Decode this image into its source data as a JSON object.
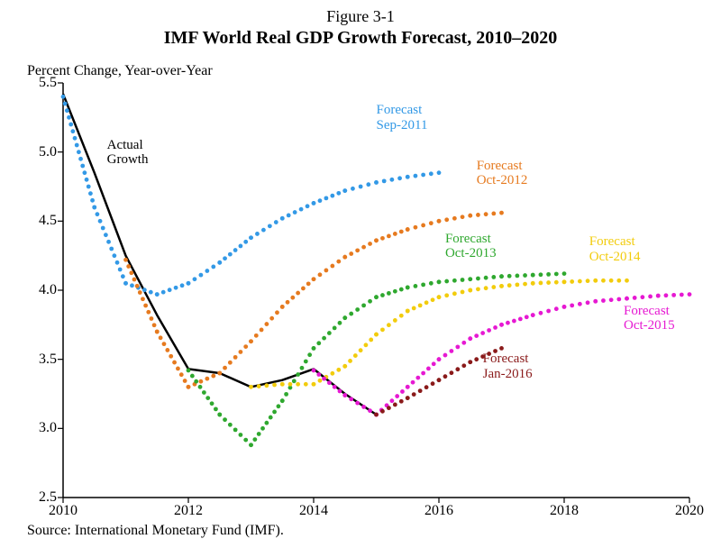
{
  "figure_label": "Figure 3-1",
  "title": "IMF World Real GDP Growth Forecast, 2010–2020",
  "y_axis_title": "Percent Change, Year-over-Year",
  "source": "Source: International Monetary Fund (IMF).",
  "chart": {
    "type": "line",
    "background_color": "#ffffff",
    "axis_color": "#000000",
    "xlim": [
      2010,
      2020
    ],
    "ylim": [
      2.5,
      5.5
    ],
    "xticks": [
      2010,
      2012,
      2014,
      2016,
      2018,
      2020
    ],
    "yticks": [
      2.5,
      3.0,
      3.5,
      4.0,
      4.5,
      5.0,
      5.5
    ],
    "tick_len": 6,
    "tick_fontsize": 16,
    "title_fontsize": 20,
    "dot_radius": 2.4,
    "line_width": 2,
    "series": [
      {
        "name": "Actual Growth",
        "label": "Actual\nGrowth",
        "label_pos": [
          2010.7,
          5.0
        ],
        "color": "#000000",
        "style": "solid",
        "data": [
          [
            2010,
            5.42
          ],
          [
            2010.5,
            4.85
          ],
          [
            2011,
            4.25
          ],
          [
            2011.5,
            3.82
          ],
          [
            2012,
            3.43
          ],
          [
            2012.5,
            3.4
          ],
          [
            2013,
            3.3
          ],
          [
            2013.5,
            3.35
          ],
          [
            2014,
            3.43
          ],
          [
            2014.5,
            3.25
          ],
          [
            2015,
            3.1
          ]
        ]
      },
      {
        "name": "Forecast Sep-2011",
        "label": "Forecast\nSep-2011",
        "label_pos": [
          2015.0,
          5.25
        ],
        "color": "#3399e6",
        "style": "dotted",
        "data": [
          [
            2010,
            5.4
          ],
          [
            2010.5,
            4.6
          ],
          [
            2011,
            4.05
          ],
          [
            2011.5,
            3.97
          ],
          [
            2012,
            4.05
          ],
          [
            2012.5,
            4.2
          ],
          [
            2013,
            4.38
          ],
          [
            2013.5,
            4.52
          ],
          [
            2014,
            4.63
          ],
          [
            2014.5,
            4.72
          ],
          [
            2015,
            4.78
          ],
          [
            2015.5,
            4.82
          ],
          [
            2016,
            4.85
          ]
        ]
      },
      {
        "name": "Forecast Oct-2012",
        "label": "Forecast\nOct-2012",
        "label_pos": [
          2016.6,
          4.85
        ],
        "color": "#e67a1f",
        "style": "dotted",
        "data": [
          [
            2011,
            4.22
          ],
          [
            2011.5,
            3.7
          ],
          [
            2012,
            3.3
          ],
          [
            2012.5,
            3.4
          ],
          [
            2013,
            3.63
          ],
          [
            2013.5,
            3.88
          ],
          [
            2014,
            4.08
          ],
          [
            2014.5,
            4.24
          ],
          [
            2015,
            4.36
          ],
          [
            2015.5,
            4.44
          ],
          [
            2016,
            4.5
          ],
          [
            2016.5,
            4.54
          ],
          [
            2017,
            4.56
          ]
        ]
      },
      {
        "name": "Forecast Oct-2013",
        "label": "Forecast\nOct-2013",
        "label_pos": [
          2016.1,
          4.32
        ],
        "color": "#2fa82f",
        "style": "dotted",
        "data": [
          [
            2012,
            3.42
          ],
          [
            2012.5,
            3.1
          ],
          [
            2013,
            2.88
          ],
          [
            2013.5,
            3.2
          ],
          [
            2014,
            3.58
          ],
          [
            2014.5,
            3.8
          ],
          [
            2015,
            3.95
          ],
          [
            2015.5,
            4.02
          ],
          [
            2016,
            4.06
          ],
          [
            2016.5,
            4.08
          ],
          [
            2017,
            4.1
          ],
          [
            2017.5,
            4.11
          ],
          [
            2018,
            4.12
          ]
        ]
      },
      {
        "name": "Forecast Oct-2014",
        "label": "Forecast\nOct-2014",
        "label_pos": [
          2018.4,
          4.3
        ],
        "color": "#f2cc0d",
        "style": "dotted",
        "data": [
          [
            2013,
            3.3
          ],
          [
            2013.5,
            3.32
          ],
          [
            2014,
            3.32
          ],
          [
            2014.5,
            3.45
          ],
          [
            2015,
            3.68
          ],
          [
            2015.5,
            3.85
          ],
          [
            2016,
            3.95
          ],
          [
            2016.5,
            4.0
          ],
          [
            2017,
            4.03
          ],
          [
            2017.5,
            4.05
          ],
          [
            2018,
            4.06
          ],
          [
            2018.5,
            4.07
          ],
          [
            2019,
            4.07
          ]
        ]
      },
      {
        "name": "Forecast Oct-2015",
        "label": "Forecast\nOct-2015",
        "label_pos": [
          2018.95,
          3.8
        ],
        "color": "#e619d2",
        "style": "dotted",
        "data": [
          [
            2014,
            3.42
          ],
          [
            2014.5,
            3.24
          ],
          [
            2015,
            3.1
          ],
          [
            2015.5,
            3.3
          ],
          [
            2016,
            3.5
          ],
          [
            2016.5,
            3.65
          ],
          [
            2017,
            3.75
          ],
          [
            2017.5,
            3.82
          ],
          [
            2018,
            3.88
          ],
          [
            2018.5,
            3.92
          ],
          [
            2019,
            3.94
          ],
          [
            2019.5,
            3.96
          ],
          [
            2020,
            3.97
          ]
        ]
      },
      {
        "name": "Forecast Jan-2016",
        "label": "Forecast\nJan-2016",
        "label_pos": [
          2016.7,
          3.45
        ],
        "color": "#8a1a1a",
        "style": "dotted",
        "data": [
          [
            2015,
            3.1
          ],
          [
            2015.5,
            3.22
          ],
          [
            2016,
            3.35
          ],
          [
            2016.5,
            3.48
          ],
          [
            2017,
            3.58
          ]
        ]
      }
    ]
  }
}
